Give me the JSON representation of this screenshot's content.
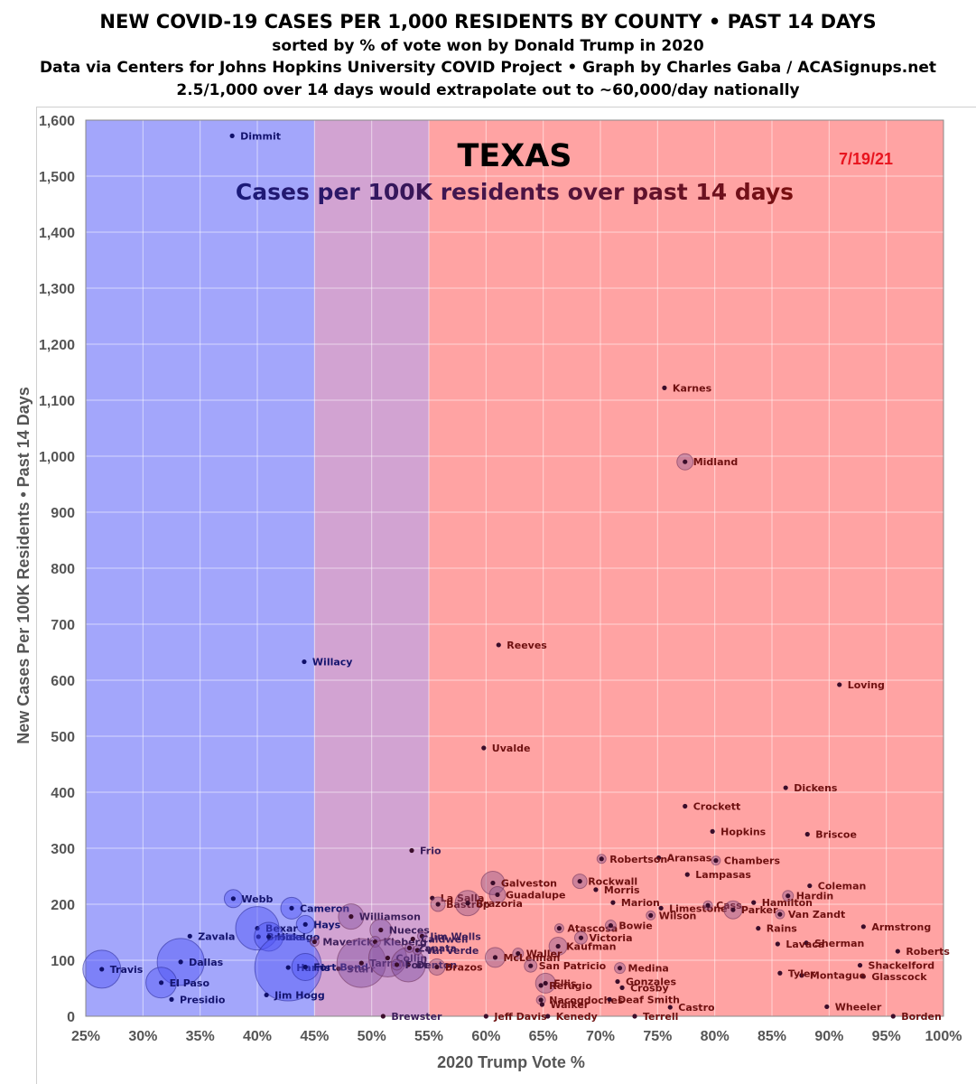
{
  "header": {
    "line1": "NEW COVID-19 CASES PER 1,000 RESIDENTS BY COUNTY • PAST 14 DAYS",
    "line2": "sorted by % of vote won by Donald Trump in 2020",
    "line3": "Data via Centers for Johns Hopkins University COVID Project • Graph by Charles Gaba / ACASignups.net",
    "line4": "2.5/1,000 over 14 days would extrapolate out to ~60,000/day nationally"
  },
  "chart_data": {
    "type": "scatter",
    "title": "TEXAS",
    "subtitle": "Cases per 100K residents over past 14 days",
    "date": "7/19/21",
    "xlabel": "2020 Trump Vote %",
    "ylabel": "New Cases Per 100K Residents • Past 14 Days",
    "xlim": [
      25,
      100
    ],
    "ylim": [
      0,
      1600
    ],
    "x_ticks": [
      "25%",
      "30%",
      "35%",
      "40%",
      "45%",
      "50%",
      "55%",
      "60%",
      "65%",
      "70%",
      "75%",
      "80%",
      "85%",
      "90%",
      "95%",
      "100%"
    ],
    "y_ticks": [
      "0",
      "100",
      "200",
      "300",
      "400",
      "500",
      "600",
      "700",
      "800",
      "900",
      "1,000",
      "1,100",
      "1,200",
      "1,300",
      "1,400",
      "1,500",
      "1,600"
    ],
    "grid": true,
    "background_bands": [
      {
        "from": 25,
        "to": 45,
        "color": "#a3a6fb"
      },
      {
        "from": 45,
        "to": 55,
        "color": "#d2a3d2"
      },
      {
        "from": 55,
        "to": 100,
        "color": "#ffa3a3"
      }
    ],
    "colors": {
      "blue_label": "#14146e",
      "red_label": "#6e1010",
      "purple_label": "#3c1e5a",
      "point": "#1a1a6e",
      "subtitle_start": "#1a1a7a",
      "subtitle_end": "#7a0f0f",
      "date": "#e8141e"
    },
    "points": [
      {
        "name": "Dimmit",
        "x": 37.8,
        "y": 1572,
        "r": 3
      },
      {
        "name": "Willacy",
        "x": 44.1,
        "y": 633,
        "r": 4
      },
      {
        "name": "Webb",
        "x": 37.9,
        "y": 210,
        "r": 10
      },
      {
        "name": "Cameron",
        "x": 43.0,
        "y": 193,
        "r": 12
      },
      {
        "name": "Hays",
        "x": 44.2,
        "y": 164,
        "r": 10
      },
      {
        "name": "Bexar",
        "x": 40.0,
        "y": 157,
        "r": 24
      },
      {
        "name": "Brooks",
        "x": 40.1,
        "y": 142,
        "r": 3
      },
      {
        "name": "Hidalgo",
        "x": 41.0,
        "y": 142,
        "r": 16
      },
      {
        "name": "Zavala",
        "x": 34.1,
        "y": 143,
        "r": 3
      },
      {
        "name": "Dallas",
        "x": 33.3,
        "y": 97,
        "r": 26
      },
      {
        "name": "Travis",
        "x": 26.4,
        "y": 84,
        "r": 21
      },
      {
        "name": "El Paso",
        "x": 31.6,
        "y": 60,
        "r": 17
      },
      {
        "name": "Presidio",
        "x": 32.5,
        "y": 30,
        "r": 3
      },
      {
        "name": "Harris",
        "x": 42.7,
        "y": 87,
        "r": 37
      },
      {
        "name": "Jim Hogg",
        "x": 40.8,
        "y": 38,
        "r": 3
      },
      {
        "name": "Fort Bend",
        "x": 44.2,
        "y": 88,
        "r": 15
      },
      {
        "name": "Williamson",
        "x": 48.2,
        "y": 178,
        "r": 14
      },
      {
        "name": "Maverick",
        "x": 45.0,
        "y": 133,
        "r": 5
      },
      {
        "name": "Starr",
        "x": 47.1,
        "y": 85,
        "r": 4
      },
      {
        "name": "Tarrant",
        "x": 49.1,
        "y": 95,
        "r": 27
      },
      {
        "name": "Nueces",
        "x": 50.8,
        "y": 154,
        "r": 12
      },
      {
        "name": "Kleberg",
        "x": 50.3,
        "y": 133,
        "r": 6
      },
      {
        "name": "Collin",
        "x": 51.4,
        "y": 104,
        "r": 21
      },
      {
        "name": "Denton",
        "x": 53.2,
        "y": 92,
        "r": 19
      },
      {
        "name": "Jim Wells",
        "x": 54.4,
        "y": 143,
        "r": 5
      },
      {
        "name": "Caldwell",
        "x": 53.6,
        "y": 138,
        "r": 4
      },
      {
        "name": "Val Verde",
        "x": 54.0,
        "y": 118,
        "r": 5
      },
      {
        "name": "Zapata",
        "x": 53.3,
        "y": 122,
        "r": 5
      },
      {
        "name": "Fort",
        "x": 52.2,
        "y": 92,
        "r": 6
      },
      {
        "name": "Brazos",
        "x": 55.7,
        "y": 88,
        "r": 9
      },
      {
        "name": "Brewster",
        "x": 51.0,
        "y": 0,
        "r": 3
      },
      {
        "name": "Frio",
        "x": 53.5,
        "y": 296,
        "r": 3
      },
      {
        "name": "Uvalde",
        "x": 59.8,
        "y": 479,
        "r": 4
      },
      {
        "name": "Reeves",
        "x": 61.1,
        "y": 663,
        "r": 3
      },
      {
        "name": "Karnes",
        "x": 75.6,
        "y": 1122,
        "r": 3
      },
      {
        "name": "Midland",
        "x": 77.4,
        "y": 990,
        "r": 9
      },
      {
        "name": "Loving",
        "x": 90.9,
        "y": 592,
        "r": 3
      },
      {
        "name": "Dickens",
        "x": 86.2,
        "y": 408,
        "r": 3
      },
      {
        "name": "Crockett",
        "x": 77.4,
        "y": 375,
        "r": 3
      },
      {
        "name": "Briscoe",
        "x": 88.1,
        "y": 325,
        "r": 3
      },
      {
        "name": "Hopkins",
        "x": 79.8,
        "y": 330,
        "r": 4
      },
      {
        "name": "Chambers",
        "x": 80.1,
        "y": 278,
        "r": 5
      },
      {
        "name": "Aransas",
        "x": 75.1,
        "y": 283,
        "r": 4
      },
      {
        "name": "Robertson",
        "x": 70.1,
        "y": 281,
        "r": 5
      },
      {
        "name": "Lampasas",
        "x": 77.6,
        "y": 253,
        "r": 4
      },
      {
        "name": "Galveston",
        "x": 60.6,
        "y": 238,
        "r": 13
      },
      {
        "name": "Rockwall",
        "x": 68.2,
        "y": 241,
        "r": 8
      },
      {
        "name": "Guadalupe",
        "x": 61.0,
        "y": 217,
        "r": 9
      },
      {
        "name": "Morris",
        "x": 69.6,
        "y": 226,
        "r": 3
      },
      {
        "name": "Coleman",
        "x": 88.3,
        "y": 233,
        "r": 3
      },
      {
        "name": "Hardin",
        "x": 86.4,
        "y": 215,
        "r": 6
      },
      {
        "name": "Hamilton",
        "x": 83.4,
        "y": 203,
        "r": 4
      },
      {
        "name": "La Salla",
        "x": 55.3,
        "y": 211,
        "r": 3
      },
      {
        "name": "Bastrop",
        "x": 55.8,
        "y": 200,
        "r": 8
      },
      {
        "name": "Brazoria",
        "x": 58.4,
        "y": 202,
        "r": 14
      },
      {
        "name": "Marion",
        "x": 71.1,
        "y": 203,
        "r": 3
      },
      {
        "name": "Limestone",
        "x": 75.3,
        "y": 193,
        "r": 4
      },
      {
        "name": "Cass",
        "x": 79.4,
        "y": 198,
        "r": 5
      },
      {
        "name": "Parker",
        "x": 81.6,
        "y": 190,
        "r": 10
      },
      {
        "name": "Van Zandt",
        "x": 85.7,
        "y": 182,
        "r": 5
      },
      {
        "name": "Wilson",
        "x": 74.4,
        "y": 180,
        "r": 5
      },
      {
        "name": "Armstrong",
        "x": 93.0,
        "y": 160,
        "r": 3
      },
      {
        "name": "Atascosa",
        "x": 66.4,
        "y": 157,
        "r": 5
      },
      {
        "name": "Bowie",
        "x": 70.9,
        "y": 162,
        "r": 6
      },
      {
        "name": "Rains",
        "x": 83.8,
        "y": 157,
        "r": 3
      },
      {
        "name": "Victoria",
        "x": 68.3,
        "y": 140,
        "r": 7
      },
      {
        "name": "Sherman",
        "x": 88.0,
        "y": 131,
        "r": 3
      },
      {
        "name": "Lavaca",
        "x": 85.5,
        "y": 129,
        "r": 4
      },
      {
        "name": "Roberts",
        "x": 96.0,
        "y": 116,
        "r": 3
      },
      {
        "name": "Kaufman",
        "x": 66.3,
        "y": 125,
        "r": 10
      },
      {
        "name": "Waller",
        "x": 62.8,
        "y": 112,
        "r": 6
      },
      {
        "name": "McLennan",
        "x": 60.8,
        "y": 105,
        "r": 11
      },
      {
        "name": "San Patricio",
        "x": 63.9,
        "y": 90,
        "r": 7
      },
      {
        "name": "Medina",
        "x": 71.7,
        "y": 86,
        "r": 6
      },
      {
        "name": "Shackelford",
        "x": 92.7,
        "y": 91,
        "r": 3
      },
      {
        "name": "Glasscock",
        "x": 93.0,
        "y": 71,
        "r": 3
      },
      {
        "name": "Montague",
        "x": 87.6,
        "y": 73,
        "r": 3
      },
      {
        "name": "Tyler",
        "x": 85.7,
        "y": 77,
        "r": 3
      },
      {
        "name": "Ellis",
        "x": 65.2,
        "y": 59,
        "r": 11
      },
      {
        "name": "Refugio",
        "x": 64.8,
        "y": 55,
        "r": 3
      },
      {
        "name": "Gonzales",
        "x": 71.5,
        "y": 62,
        "r": 4
      },
      {
        "name": "Crosby",
        "x": 71.9,
        "y": 51,
        "r": 3
      },
      {
        "name": "Nacogdoches",
        "x": 64.8,
        "y": 29,
        "r": 5
      },
      {
        "name": "Walker",
        "x": 64.9,
        "y": 21,
        "r": 4
      },
      {
        "name": "Deaf Smith",
        "x": 70.8,
        "y": 30,
        "r": 3
      },
      {
        "name": "Castro",
        "x": 76.1,
        "y": 16,
        "r": 3
      },
      {
        "name": "Wheeler",
        "x": 89.8,
        "y": 17,
        "r": 3
      },
      {
        "name": "Jeff Davis",
        "x": 60.0,
        "y": 0,
        "r": 3
      },
      {
        "name": "Kenedy",
        "x": 65.4,
        "y": 0,
        "r": 3
      },
      {
        "name": "Terrell",
        "x": 73.0,
        "y": 0,
        "r": 3
      },
      {
        "name": "Borden",
        "x": 95.6,
        "y": 0,
        "r": 3
      }
    ]
  }
}
